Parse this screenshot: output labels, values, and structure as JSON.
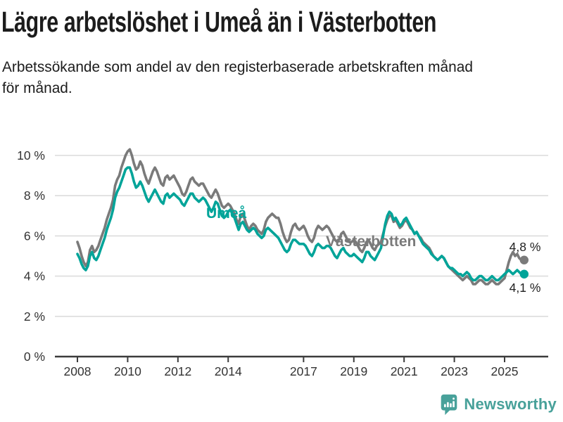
{
  "chart_data": {
    "type": "line",
    "title": "Lägre arbetslöshet i Umeå än i Västerbotten",
    "subtitle": "Arbetssökande som andel av den registerbaserade arbetskraften månad\nför månad.",
    "xlabel": "",
    "ylabel": "",
    "unit": "%",
    "x_start": "2008-01",
    "x_frequency": "monthly",
    "x_tick_years": [
      2008,
      2010,
      2012,
      2014,
      2017,
      2019,
      2021,
      2023,
      2025
    ],
    "y_ticks": [
      0,
      2,
      4,
      6,
      8,
      10
    ],
    "y_tick_suffix": " %",
    "ylim": [
      0,
      10.5
    ],
    "grid": true,
    "colors": {
      "grid": "#dcdcdc",
      "axis": "#3c3c3c",
      "tick_text": "#333333"
    },
    "series": [
      {
        "name": "Västerbotten",
        "color": "#7a7a7a",
        "end_label": "4,8 %",
        "end_value": 4.8,
        "values": [
          5.7,
          5.4,
          5.0,
          4.7,
          4.5,
          4.7,
          5.3,
          5.5,
          5.2,
          5.3,
          5.5,
          5.8,
          6.1,
          6.4,
          6.8,
          7.1,
          7.4,
          7.8,
          8.5,
          8.8,
          9.0,
          9.4,
          9.7,
          10.0,
          10.2,
          10.3,
          10.0,
          9.6,
          9.3,
          9.4,
          9.7,
          9.5,
          9.1,
          8.8,
          8.6,
          8.9,
          9.2,
          9.4,
          9.2,
          8.9,
          8.6,
          8.5,
          8.9,
          9.0,
          8.8,
          8.9,
          9.0,
          8.8,
          8.6,
          8.4,
          8.1,
          8.0,
          8.2,
          8.5,
          8.8,
          8.9,
          8.7,
          8.6,
          8.5,
          8.6,
          8.6,
          8.4,
          8.2,
          8.0,
          7.9,
          8.1,
          8.3,
          8.1,
          7.8,
          7.5,
          7.4,
          7.5,
          7.6,
          7.5,
          7.3,
          7.1,
          6.8,
          6.6,
          7.0,
          7.1,
          6.8,
          6.5,
          6.3,
          6.5,
          6.6,
          6.5,
          6.3,
          6.2,
          6.1,
          6.3,
          6.7,
          6.9,
          7.0,
          7.1,
          7.0,
          6.9,
          6.9,
          6.6,
          6.2,
          5.9,
          5.7,
          5.8,
          6.2,
          6.5,
          6.6,
          6.4,
          6.3,
          6.4,
          6.5,
          6.3,
          6.0,
          5.8,
          5.7,
          5.9,
          6.3,
          6.5,
          6.4,
          6.3,
          6.4,
          6.5,
          6.4,
          6.2,
          6.0,
          5.8,
          5.7,
          5.8,
          6.1,
          6.2,
          6.0,
          5.8,
          5.7,
          5.7,
          5.8,
          5.7,
          5.5,
          5.3,
          5.2,
          5.4,
          5.7,
          5.8,
          5.6,
          5.4,
          5.3,
          5.5,
          5.6,
          5.7,
          6.1,
          6.5,
          6.8,
          7.0,
          7.0,
          6.7,
          6.8,
          6.6,
          6.4,
          6.5,
          6.7,
          6.8,
          6.6,
          6.4,
          6.3,
          6.1,
          6.2,
          6.0,
          5.9,
          5.7,
          5.6,
          5.5,
          5.4,
          5.2,
          5.0,
          4.9,
          4.8,
          4.9,
          5.0,
          4.9,
          4.7,
          4.5,
          4.4,
          4.3,
          4.2,
          4.1,
          4.0,
          3.9,
          3.8,
          3.9,
          4.0,
          3.9,
          3.8,
          3.6,
          3.6,
          3.7,
          3.8,
          3.8,
          3.7,
          3.6,
          3.6,
          3.7,
          3.8,
          3.7,
          3.6,
          3.6,
          3.7,
          3.8,
          3.9,
          4.3,
          4.7,
          5.0,
          5.2,
          5.0,
          5.1,
          4.9,
          4.8
        ]
      },
      {
        "name": "Umeå",
        "color": "#00a499",
        "end_label": "4,1 %",
        "end_value": 4.1,
        "values": [
          5.1,
          4.9,
          4.6,
          4.4,
          4.3,
          4.5,
          5.0,
          5.2,
          4.9,
          4.8,
          5.0,
          5.3,
          5.6,
          5.9,
          6.3,
          6.6,
          6.9,
          7.3,
          7.9,
          8.2,
          8.4,
          8.7,
          9.0,
          9.3,
          9.4,
          9.4,
          9.1,
          8.7,
          8.4,
          8.5,
          8.7,
          8.5,
          8.2,
          7.9,
          7.7,
          7.9,
          8.1,
          8.3,
          8.1,
          7.9,
          7.7,
          7.6,
          8.0,
          8.1,
          7.9,
          8.0,
          8.1,
          8.0,
          7.9,
          7.8,
          7.6,
          7.5,
          7.7,
          7.9,
          8.1,
          8.1,
          7.9,
          7.8,
          7.7,
          7.8,
          7.9,
          7.8,
          7.6,
          7.4,
          7.2,
          7.4,
          7.7,
          7.6,
          7.3,
          7.0,
          6.9,
          7.0,
          7.2,
          7.3,
          7.1,
          6.9,
          6.6,
          6.3,
          6.6,
          6.7,
          6.5,
          6.3,
          6.2,
          6.3,
          6.4,
          6.3,
          6.1,
          6.0,
          5.9,
          6.0,
          6.3,
          6.4,
          6.3,
          6.2,
          6.1,
          6.0,
          5.9,
          5.7,
          5.5,
          5.3,
          5.2,
          5.3,
          5.6,
          5.8,
          5.8,
          5.7,
          5.6,
          5.6,
          5.6,
          5.5,
          5.3,
          5.1,
          5.0,
          5.2,
          5.5,
          5.6,
          5.5,
          5.4,
          5.4,
          5.5,
          5.5,
          5.4,
          5.2,
          5.0,
          4.9,
          5.1,
          5.3,
          5.4,
          5.2,
          5.1,
          5.0,
          5.0,
          5.1,
          5.0,
          4.9,
          4.8,
          4.7,
          4.9,
          5.2,
          5.2,
          5.0,
          4.9,
          4.8,
          5.0,
          5.2,
          5.4,
          6.0,
          6.6,
          7.0,
          7.2,
          7.1,
          6.8,
          6.9,
          6.7,
          6.5,
          6.6,
          6.8,
          6.9,
          6.7,
          6.5,
          6.3,
          6.1,
          6.2,
          6.0,
          5.8,
          5.6,
          5.5,
          5.4,
          5.3,
          5.1,
          5.0,
          4.9,
          4.8,
          4.9,
          5.0,
          4.9,
          4.7,
          4.5,
          4.4,
          4.4,
          4.3,
          4.2,
          4.1,
          4.1,
          4.0,
          4.1,
          4.2,
          4.1,
          3.9,
          3.8,
          3.8,
          3.9,
          4.0,
          4.0,
          3.9,
          3.8,
          3.8,
          3.9,
          4.0,
          3.9,
          3.8,
          3.8,
          3.9,
          4.0,
          4.1,
          4.2,
          4.3,
          4.2,
          4.1,
          4.2,
          4.3,
          4.2,
          4.1
        ]
      }
    ]
  },
  "footer": {
    "brand": "Newsworthy",
    "logo_color": "#48a19a"
  }
}
